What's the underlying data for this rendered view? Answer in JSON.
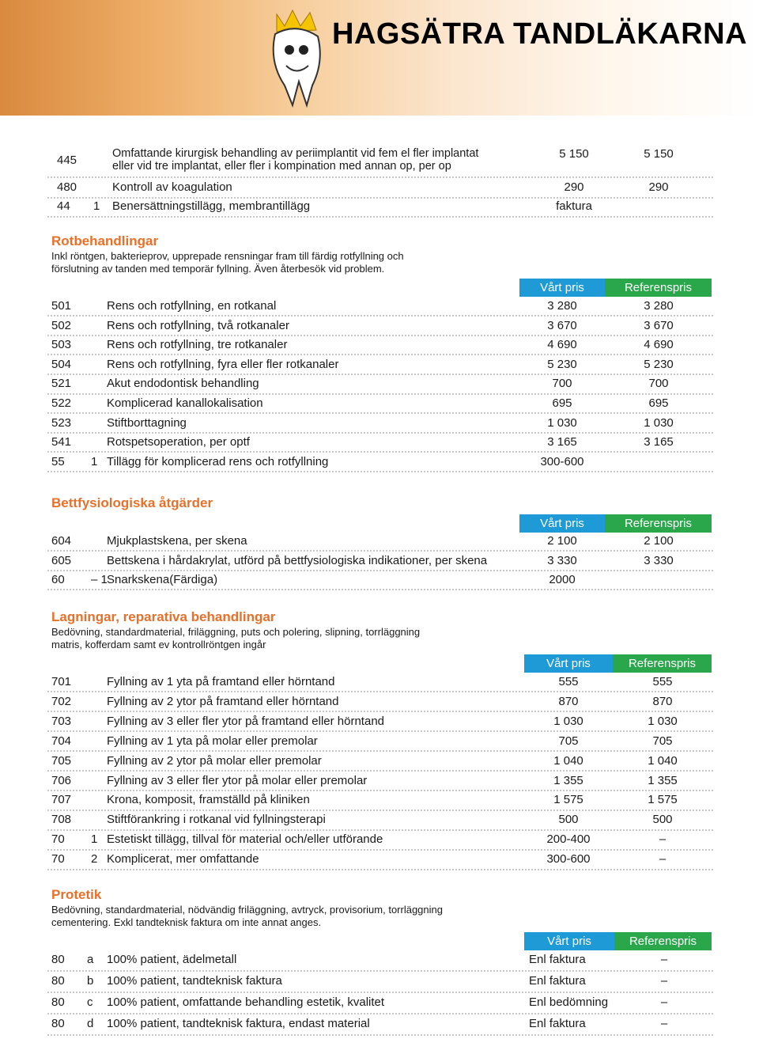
{
  "header": {
    "title": "HAGSÄTRA TANDLÄKARNA"
  },
  "top_rows": [
    {
      "code": "445",
      "desc": [
        "Omfattande kirurgisk behandling av periimplantit vid fem el fler implantat",
        "eller vid tre implantat, eller fler i kompination med annan op, per op"
      ],
      "price": "5 150",
      "ref": "5 150"
    },
    {
      "code": "480",
      "desc": [
        "Kontroll av koagulation"
      ],
      "price": "290",
      "ref": "290"
    },
    {
      "code": "44",
      "sub": "1",
      "desc": [
        "Benersättningstillägg, membrantillägg"
      ],
      "price": "faktura"
    }
  ],
  "sections": [
    {
      "title": "Rotbehandlingar",
      "description": [
        "Inkl röntgen, bakterieprov, upprepade rensningar fram till färdig rotfyllning och",
        "förslutning av tanden med temporär fyllning. Även återbesök vid problem."
      ],
      "headers": [
        "Vårt pris",
        "Referenspris"
      ],
      "rows": [
        {
          "code": "501",
          "desc": [
            "Rens och rotfyllning, en rotkanal"
          ],
          "price": "3 280",
          "ref": "3 280"
        },
        {
          "code": "502",
          "desc": [
            "Rens och rotfyllning, två rotkanaler"
          ],
          "price": "3 670",
          "ref": "3 670"
        },
        {
          "code": "503",
          "desc": [
            "Rens och rotfyllning, tre rotkanaler"
          ],
          "price": "4 690",
          "ref": "4 690"
        },
        {
          "code": "504",
          "desc": [
            "Rens och rotfyllning, fyra eller fler rotkanaler"
          ],
          "price": "5 230",
          "ref": "5 230"
        },
        {
          "code": "521",
          "desc": [
            "Akut endodontisk behandling"
          ],
          "price": "700",
          "ref": "700"
        },
        {
          "code": "522",
          "desc": [
            "Komplicerad kanallokalisation"
          ],
          "price": "695",
          "ref": "695"
        },
        {
          "code": "523",
          "desc": [
            "Stiftborttagning"
          ],
          "price": "1 030",
          "ref": "1 030"
        },
        {
          "code": "541",
          "desc": [
            "Rotspetsoperation, per optf"
          ],
          "price": "3 165",
          "ref": "3 165"
        },
        {
          "code": "55",
          "sub": "1",
          "desc": [
            "Tillägg för komplicerad rens och rotfyllning"
          ],
          "price": "300-600"
        }
      ]
    },
    {
      "title": "Bettfysiologiska åtgärder",
      "headers": [
        "Vårt pris",
        "Referenspris"
      ],
      "rows": [
        {
          "code": "604",
          "desc": [
            "Mjukplastskena, per skena"
          ],
          "price": "2 100",
          "ref": "2 100"
        },
        {
          "code": "605",
          "desc": [
            "Bettskena i hårdakrylat, utförd på bettfysiologiska indikationer, per skena"
          ],
          "price": "3 330",
          "ref": "3 330"
        },
        {
          "code": "60",
          "sub": "– 1",
          "desc": [
            "Snarkskena(Färdiga)"
          ],
          "price": "2000"
        }
      ]
    },
    {
      "title": "Lagningar, reparativa behandlingar",
      "description": [
        "Bedövning, standardmaterial, friläggning, puts och polering, slipning, torrläggning",
        "matris, kofferdam samt ev kontrollröntgen ingår"
      ],
      "headers": [
        "Vårt pris",
        "Referenspris"
      ],
      "rows": [
        {
          "code": "701",
          "desc": [
            "Fyllning av 1 yta på framtand eller hörntand"
          ],
          "price": "555",
          "ref": "555"
        },
        {
          "code": "702",
          "desc": [
            "Fyllning av 2 ytor på framtand eller hörntand"
          ],
          "price": "870",
          "ref": "870"
        },
        {
          "code": "703",
          "desc": [
            "Fyllning av 3 eller fler ytor på framtand eller hörntand"
          ],
          "price": "1 030",
          "ref": "1 030"
        },
        {
          "code": "704",
          "desc": [
            "Fyllning av 1 yta på molar eller premolar"
          ],
          "price": "705",
          "ref": "705"
        },
        {
          "code": "705",
          "desc": [
            "Fyllning av 2 ytor på molar eller premolar"
          ],
          "price": "1 040",
          "ref": "1 040"
        },
        {
          "code": "706",
          "desc": [
            "Fyllning av 3 eller fler ytor på molar eller premolar"
          ],
          "price": "1 355",
          "ref": "1 355"
        },
        {
          "code": "707",
          "desc": [
            "Krona, komposit, framställd på kliniken"
          ],
          "price": "1 575",
          "ref": "1 575"
        },
        {
          "code": "708",
          "desc": [
            "Stiftförankring i rotkanal vid fyllningsterapi"
          ],
          "price": "500",
          "ref": "500"
        },
        {
          "code": "70",
          "sub": "1",
          "desc": [
            "Estetiskt tillägg, tillval för material och/eller utförande"
          ],
          "price": "200-400",
          "ref": "–"
        },
        {
          "code": "70",
          "sub": "2",
          "desc": [
            "Komplicerat, mer omfattande"
          ],
          "price": "300-600",
          "ref": "–"
        }
      ]
    },
    {
      "title": "Protetik",
      "description": [
        "Bedövning, standardmaterial, nödvändig friläggning, avtryck, provisorium, torrläggning",
        "cementering. Exkl tandteknisk faktura om inte annat anges."
      ],
      "headers": [
        "Vårt pris",
        "Referenspris"
      ],
      "rows": [
        {
          "code": "80",
          "sub": "a",
          "desc": [
            "100% patient, ädelmetall"
          ],
          "price": "Enl faktura",
          "ref": "–"
        },
        {
          "code": "80",
          "sub": "b",
          "desc": [
            "100% patient, tandteknisk faktura"
          ],
          "price": "Enl faktura",
          "ref": "–"
        },
        {
          "code": "80",
          "sub": "c",
          "desc": [
            "100% patient, omfattande behandling estetik, kvalitet"
          ],
          "price": "Enl bedömning",
          "ref": "–"
        },
        {
          "code": "80",
          "sub": "d",
          "desc": [
            "100% patient, tandteknisk faktura, endast material"
          ],
          "price": "Enl faktura",
          "ref": "–"
        }
      ]
    }
  ]
}
